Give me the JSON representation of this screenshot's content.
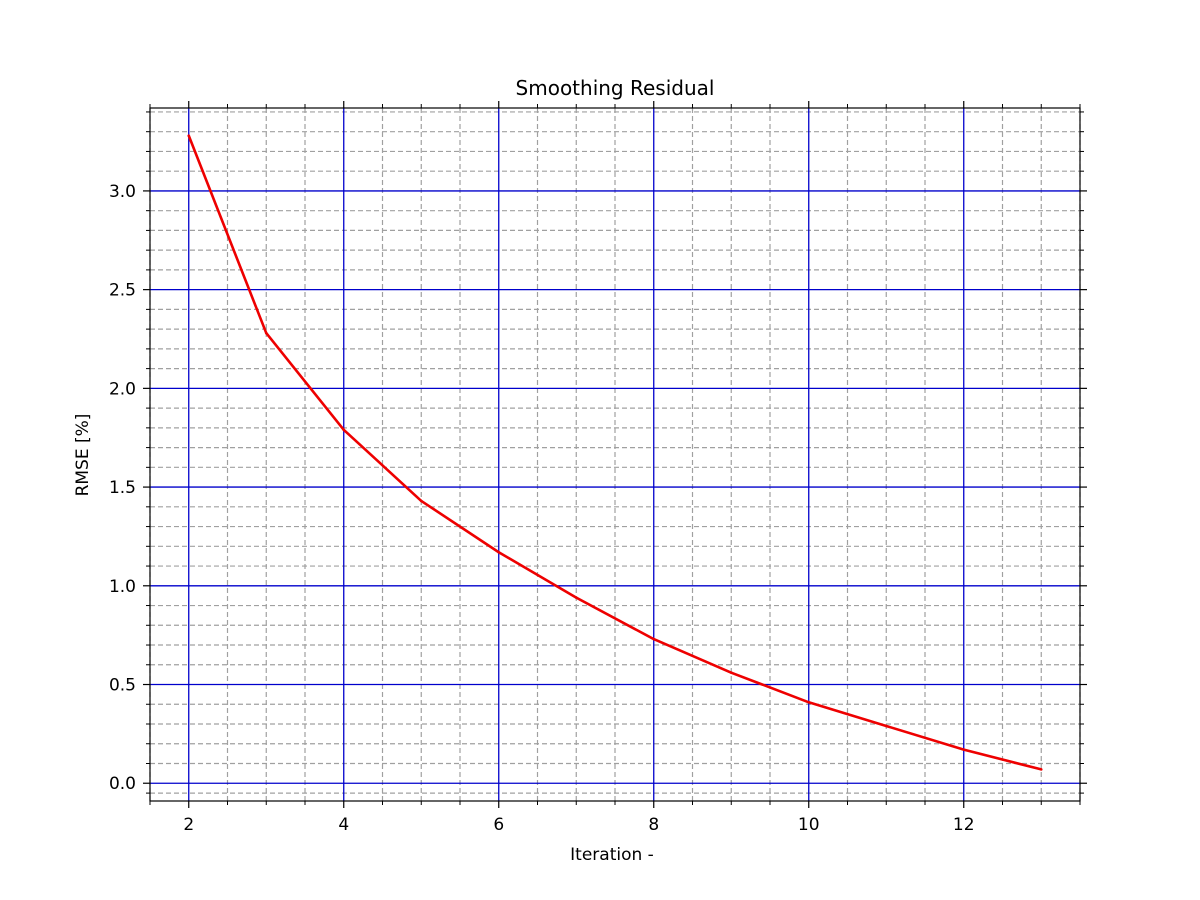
{
  "chart_data": {
    "type": "line",
    "title": "Smoothing Residual",
    "xlabel": "Iteration -",
    "ylabel": "RMSE [%]",
    "xlim": [
      1.5,
      13.5
    ],
    "ylim": [
      -0.09,
      3.42
    ],
    "x_major_ticks": [
      2,
      4,
      6,
      8,
      10,
      12
    ],
    "x_minor_ticks": [
      1.5,
      2.5,
      3,
      3.5,
      4.5,
      5,
      5.5,
      6.5,
      7,
      7.5,
      8.5,
      9,
      9.5,
      10.5,
      11,
      11.5,
      12.5,
      13,
      13.5
    ],
    "y_major_ticks": [
      0.0,
      0.5,
      1.0,
      1.5,
      2.0,
      2.5,
      3.0
    ],
    "y_minor_ticks": [
      -0.05,
      0.1,
      0.2,
      0.3,
      0.4,
      0.6,
      0.7,
      0.8,
      0.9,
      1.1,
      1.2,
      1.3,
      1.4,
      1.6,
      1.7,
      1.8,
      1.9,
      2.1,
      2.2,
      2.3,
      2.4,
      2.6,
      2.7,
      2.8,
      2.9,
      3.1,
      3.2,
      3.3,
      3.4
    ],
    "x_tick_labels": [
      "2",
      "4",
      "6",
      "8",
      "10",
      "12"
    ],
    "y_tick_labels": [
      "0.0",
      "0.5",
      "1.0",
      "1.5",
      "2.0",
      "2.5",
      "3.0"
    ],
    "grid": {
      "major": true,
      "minor": true,
      "major_color": "#0000cc",
      "minor_color": "#a0a0a0",
      "minor_style": "dashed"
    },
    "series": [
      {
        "color": "#ee0000",
        "x": [
          2,
          3,
          4,
          5,
          6,
          7,
          8,
          9,
          10,
          11,
          12,
          13
        ],
        "y": [
          3.28,
          2.28,
          1.79,
          1.43,
          1.17,
          0.94,
          0.73,
          0.56,
          0.41,
          0.29,
          0.17,
          0.07
        ]
      }
    ]
  }
}
